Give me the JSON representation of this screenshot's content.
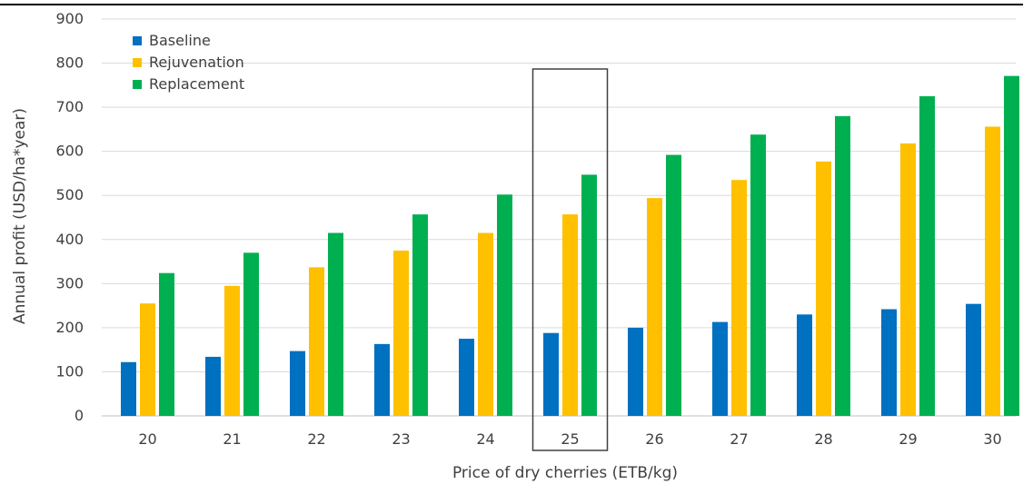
{
  "chart_data": {
    "type": "bar",
    "title": "",
    "xlabel": "Price of dry cherries (ETB/kg)",
    "ylabel": "Annual profit (USD/ha*year)",
    "categories": [
      "20",
      "21",
      "22",
      "23",
      "24",
      "25",
      "26",
      "27",
      "28",
      "29",
      "30"
    ],
    "series": [
      {
        "name": "Baseline",
        "color": "#0070C0",
        "values": [
          122,
          134,
          147,
          163,
          175,
          188,
          200,
          213,
          230,
          242,
          254
        ]
      },
      {
        "name": "Rejuvenation",
        "color": "#FFC000",
        "values": [
          255,
          295,
          337,
          375,
          415,
          457,
          494,
          535,
          577,
          618,
          656
        ]
      },
      {
        "name": "Replacement",
        "color": "#00B050",
        "values": [
          324,
          370,
          415,
          457,
          502,
          547,
          592,
          638,
          680,
          725,
          771
        ]
      }
    ],
    "yticks": [
      "0",
      "100",
      "200",
      "300",
      "400",
      "500",
      "600",
      "700",
      "800",
      "900"
    ],
    "ylim": [
      0,
      900
    ],
    "grid": true,
    "legend_position": "top-left",
    "highlighted_category": "25"
  }
}
